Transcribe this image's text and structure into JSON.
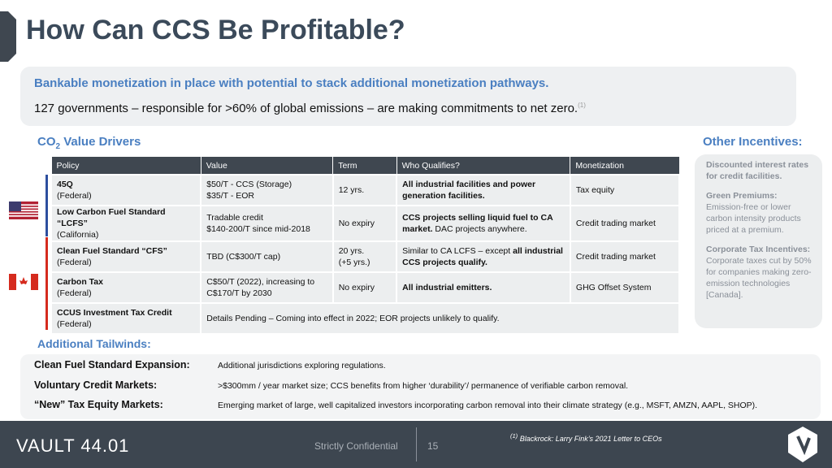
{
  "header": {
    "title": "How Can CCS Be Profitable?"
  },
  "banner": {
    "headline": "Bankable monetization in place with potential to stack additional monetization pathways.",
    "text": "127 governments – responsible for >60% of global emissions – are making commitments to net zero.",
    "note_ref": "(1)"
  },
  "drivers_heading": {
    "base": "CO",
    "sub": "2",
    "rest": " Value Drivers"
  },
  "table": {
    "columns": [
      "Policy",
      "Value",
      "Term",
      "Who Qualifies?",
      "Monetization"
    ],
    "rows": [
      {
        "policy": "45Q",
        "region": "(Federal)",
        "value": [
          "$50/T - CCS (Storage)",
          "$35/T - EOR"
        ],
        "term": [
          "12 yrs."
        ],
        "qualifies": [
          {
            "text": "All industrial facilities and power generation facilities.",
            "bold": true
          }
        ],
        "monetization": "Tax equity"
      },
      {
        "policy": "Low Carbon Fuel Standard “LCFS”",
        "region": "(California)",
        "value": [
          "Tradable credit",
          "$140-200/T since mid-2018"
        ],
        "term": [
          "No expiry"
        ],
        "qualifies": [
          {
            "text": "CCS projects selling liquid fuel to CA market.",
            "bold": true
          },
          {
            "text": " DAC projects anywhere.",
            "bold": false
          }
        ],
        "monetization": "Credit trading market"
      },
      {
        "policy": "Clean Fuel Standard “CFS”",
        "region": "(Federal)",
        "value": [
          "TBD (C$300/T cap)"
        ],
        "term": [
          "20 yrs.",
          "(+5 yrs.)"
        ],
        "qualifies": [
          {
            "text": "Similar to CA LCFS – except ",
            "bold": false
          },
          {
            "text": "all industrial CCS projects qualify.",
            "bold": true
          }
        ],
        "monetization": "Credit trading market"
      },
      {
        "policy": "Carbon Tax",
        "region": "(Federal)",
        "value": [
          "C$50/T (2022), increasing to C$170/T by 2030"
        ],
        "term": [
          "No expiry"
        ],
        "qualifies": [
          {
            "text": "All industrial emitters.",
            "bold": true
          }
        ],
        "monetization": "GHG Offset System"
      },
      {
        "policy": "CCUS Investment Tax Credit",
        "region": "(Federal)",
        "details": "Details Pending – Coming into effect in 2022; EOR projects unlikely to qualify."
      }
    ]
  },
  "other": {
    "heading": "Other Incentives:",
    "items": [
      {
        "label": "Discounted interest rates for credit facilities.",
        "text": ""
      },
      {
        "label": "Green Premiums:",
        "text": "Emission-free or lower carbon intensity products priced at a premium."
      },
      {
        "label": "Corporate Tax Incentives:",
        "text": "Corporate taxes cut by 50% for companies making zero-emission technologies [Canada]."
      }
    ]
  },
  "tailwinds": {
    "heading": "Additional Tailwinds:",
    "items": [
      {
        "label": "Clean Fuel Standard Expansion:",
        "text": "Additional jurisdictions exploring regulations."
      },
      {
        "label": "Voluntary Credit Markets:",
        "text": ">$300mm / year market size; CCS benefits from higher ‘durability’/ permanence of verifiable carbon removal."
      },
      {
        "label": "“New” Tax Equity Markets:",
        "text": "Emerging market of large, well capitalized investors incorporating carbon removal into their climate strategy (e.g., MSFT, AMZN, AAPL, SHOP)."
      }
    ]
  },
  "footer": {
    "logo": "VAULT 44.01",
    "confidential": "Strictly Confidential",
    "page": "15",
    "footnote_ref": "(1)",
    "footnote": "Blackrock: Larry Fink’s 2021 Letter to CEOs"
  }
}
